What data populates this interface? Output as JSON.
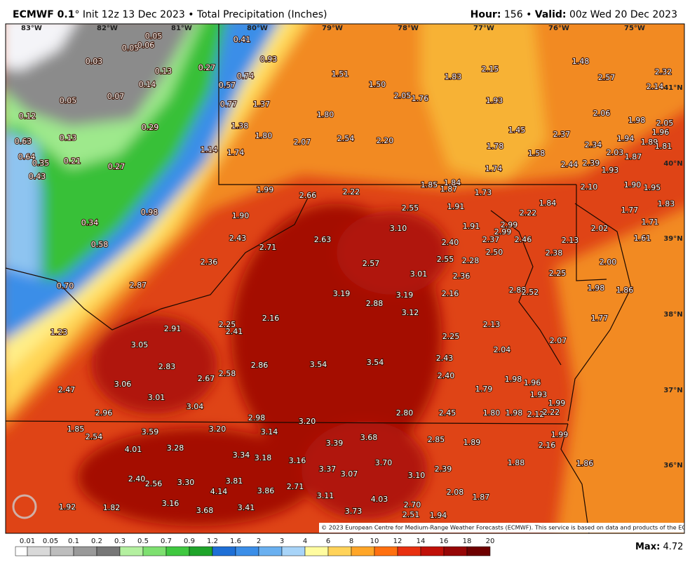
{
  "header": {
    "model": "ECMWF 0.1",
    "info": "° Init 12z 13 Dec 2023 • Total Precipitation (Inches)",
    "hour_label": "Hour:",
    "hour": "156 •",
    "valid_label": "Valid:",
    "valid": "00z Wed 20 Dec 2023"
  },
  "map": {
    "lon_labels": [
      "83°W",
      "82°W",
      "81°W",
      "80°W",
      "79°W",
      "78°W",
      "77°W",
      "76°W",
      "75°W"
    ],
    "lat_labels": [
      "41°N",
      "40°N",
      "39°N",
      "38°N",
      "37°N",
      "36°N"
    ],
    "amounts": [
      "0.05",
      "0.05",
      "0.06",
      "0.41",
      "0.03",
      "0.93",
      "0.27",
      "0.13",
      "1.51",
      "1.83",
      "2.15",
      "1.48",
      "2.57",
      "2.32",
      "0.74",
      "0.14",
      "1.50",
      "0.57",
      "2.14",
      "0.07",
      "2.05",
      "1.76",
      "1.93",
      "0.05",
      "0.77",
      "1.37",
      "1.80",
      "2.06",
      "0.12",
      "1.98",
      "2.05",
      "0.29",
      "1.38",
      "1.45",
      "2.37",
      "1.96",
      "0.13",
      "1.80",
      "2.54",
      "2.20",
      "1.94",
      "1.89",
      "0.63",
      "1.78",
      "1.58",
      "2.34",
      "1.81",
      "2.07",
      "1.14",
      "1.74",
      "2.03",
      "1.87",
      "0.64",
      "0.21",
      "0.35",
      "0.27",
      "1.74",
      "2.44",
      "2.39",
      "1.93",
      "0.43",
      "1.85",
      "1.87",
      "1.84",
      "2.10",
      "1.90",
      "1.95",
      "1.99",
      "2.66",
      "2.22",
      "1.73",
      "1.77",
      "1.83",
      "0.98",
      "2.55",
      "1.91",
      "2.22",
      "1.84",
      "1.90",
      "0.34",
      "3.10",
      "1.91",
      "2.99",
      "2.02",
      "1.71",
      "2.99",
      "2.43",
      "2.63",
      "2.37",
      "2.46",
      "2.13",
      "1.61",
      "0.58",
      "2.71",
      "2.40",
      "2.50",
      "2.38",
      "2.36",
      "2.57",
      "2.55",
      "2.28",
      "2.00",
      "3.01",
      "2.36",
      "2.25",
      "0.70",
      "2.87",
      "3.19",
      "3.19",
      "2.16",
      "2.88",
      "2.52",
      "1.98",
      "1.86",
      "2.88",
      "2.16",
      "3.12",
      "1.77",
      "2.25",
      "2.13",
      "1.23",
      "2.91",
      "2.41",
      "2.25",
      "2.07",
      "3.05",
      "2.04",
      "2.43",
      "2.83",
      "2.86",
      "3.54",
      "3.54",
      "2.40",
      "2.67",
      "2.58",
      "1.98",
      "1.96",
      "3.06",
      "1.79",
      "1.93",
      "2.47",
      "3.01",
      "1.99",
      "3.04",
      "2.96",
      "2.98",
      "2.80",
      "2.45",
      "1.80",
      "1.98",
      "2.12",
      "2.22",
      "3.20",
      "1.85",
      "3.59",
      "3.20",
      "3.14",
      "2.54",
      "3.68",
      "2.85",
      "1.89",
      "1.99",
      "4.01",
      "3.28",
      "3.39",
      "2.16",
      "3.34",
      "3.18",
      "3.16",
      "3.70",
      "1.88",
      "1.86",
      "3.37",
      "3.07",
      "2.39",
      "3.10",
      "2.40",
      "2.56",
      "3.30",
      "3.81",
      "2.71",
      "4.14",
      "3.86",
      "2.08",
      "3.11",
      "1.87",
      "4.03",
      "1.92",
      "1.82",
      "3.16",
      "3.41",
      "2.70",
      "3.68",
      "3.73",
      "2.51",
      "1.94"
    ],
    "copyright": "© 2023 European Centre for Medium-Range Weather Forecasts (ECMWF). This service is based on data and products of the ECMWF."
  },
  "legend": {
    "ticks": [
      "0.01",
      "0.05",
      "0.1",
      "0.2",
      "0.3",
      "0.5",
      "0.7",
      "0.9",
      "1.2",
      "1.6",
      "2",
      "3",
      "4",
      "6",
      "8",
      "10",
      "12",
      "14",
      "16",
      "18",
      "20"
    ],
    "max_label": "Max:",
    "max": "4.72"
  }
}
